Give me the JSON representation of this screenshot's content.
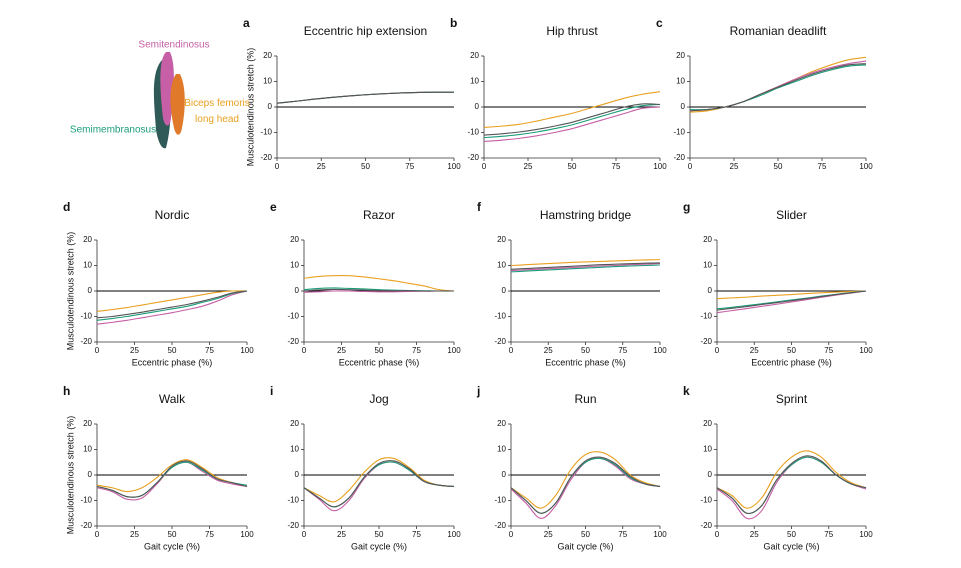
{
  "legend": [
    {
      "name": "Semitendinosus",
      "color": "#c65fa6"
    },
    {
      "name": "Semimembranosus",
      "color": "#1a9c7a"
    },
    {
      "name": "Biceps femoris long head",
      "color": "#e8a020"
    }
  ],
  "chart_data": [
    {
      "type": "line",
      "label": "a",
      "title": "Eccentric hip extension",
      "ylabel": "Musculotendinous stretch (%)",
      "x": [
        0,
        10,
        20,
        30,
        40,
        50,
        60,
        70,
        80,
        90,
        100
      ],
      "xlim": [
        0,
        100
      ],
      "ylim": [
        -20,
        20
      ],
      "xticks": [
        0,
        25,
        50,
        75,
        100
      ],
      "yticks": [
        -20,
        -10,
        0,
        10,
        20
      ],
      "series": [
        {
          "color": "#e8a020",
          "values": [
            1.5,
            2.2,
            3,
            3.7,
            4.3,
            4.8,
            5.2,
            5.5,
            5.7,
            5.8,
            5.8
          ]
        },
        {
          "color": "#c65fa6",
          "values": [
            1.5,
            2.2,
            3,
            3.7,
            4.3,
            4.8,
            5.2,
            5.5,
            5.7,
            5.8,
            5.8
          ]
        },
        {
          "color": "#1a9c7a",
          "values": [
            1.5,
            2.2,
            3,
            3.7,
            4.3,
            4.8,
            5.2,
            5.5,
            5.7,
            5.8,
            5.8
          ]
        },
        {
          "color": "#555555",
          "values": [
            1.5,
            2.2,
            3,
            3.7,
            4.3,
            4.8,
            5.2,
            5.5,
            5.7,
            5.8,
            5.8
          ]
        }
      ]
    },
    {
      "type": "line",
      "label": "b",
      "title": "Hip thrust",
      "x": [
        0,
        10,
        20,
        30,
        40,
        50,
        60,
        70,
        80,
        90,
        100
      ],
      "xlim": [
        0,
        100
      ],
      "ylim": [
        -20,
        20
      ],
      "xticks": [
        0,
        25,
        50,
        75,
        100
      ],
      "yticks": [
        -20,
        -10,
        0,
        10,
        20
      ],
      "series": [
        {
          "color": "#e8a020",
          "values": [
            -8,
            -7.5,
            -6.8,
            -5.5,
            -4,
            -2.5,
            -0.5,
            1.5,
            3.5,
            5,
            6
          ]
        },
        {
          "color": "#c65fa6",
          "values": [
            -13.5,
            -13,
            -12.3,
            -11.3,
            -10,
            -8.5,
            -6.5,
            -4.5,
            -2.5,
            -0.5,
            0
          ]
        },
        {
          "color": "#1a9c7a",
          "values": [
            -12,
            -11.5,
            -10.8,
            -9.8,
            -8.5,
            -7,
            -5,
            -3,
            -1,
            0.5,
            1
          ]
        },
        {
          "color": "#555555",
          "values": [
            -11,
            -10.5,
            -9.8,
            -8.8,
            -7.5,
            -6,
            -4,
            -2,
            0,
            1.2,
            1
          ]
        }
      ]
    },
    {
      "type": "line",
      "label": "c",
      "title": "Romanian deadlift",
      "x": [
        0,
        10,
        20,
        30,
        40,
        50,
        60,
        70,
        80,
        90,
        100
      ],
      "xlim": [
        0,
        100
      ],
      "ylim": [
        -20,
        20
      ],
      "xticks": [
        0,
        25,
        50,
        75,
        100
      ],
      "yticks": [
        -20,
        -10,
        0,
        10,
        20
      ],
      "series": [
        {
          "color": "#e8a020",
          "values": [
            -2,
            -1.5,
            0,
            2,
            5,
            8,
            11,
            14,
            16.5,
            18.5,
            19.5
          ]
        },
        {
          "color": "#c65fa6",
          "values": [
            -1.5,
            -1,
            0,
            2,
            5,
            8,
            11,
            13.5,
            15.5,
            17,
            18
          ]
        },
        {
          "color": "#1a9c7a",
          "values": [
            -1,
            -1,
            0,
            2,
            4.5,
            7.5,
            10,
            12.5,
            14.5,
            16,
            16.5
          ]
        },
        {
          "color": "#555555",
          "values": [
            -1.5,
            -1,
            0,
            2,
            5,
            7.8,
            10.5,
            13,
            15,
            16.5,
            17
          ]
        }
      ]
    },
    {
      "type": "line",
      "label": "d",
      "title": "Nordic",
      "ylabel": "Musculotendinous stretch (%)",
      "xlabel": "Eccentric phase (%)",
      "x": [
        0,
        10,
        20,
        30,
        40,
        50,
        60,
        70,
        80,
        90,
        100
      ],
      "xlim": [
        0,
        100
      ],
      "ylim": [
        -20,
        20
      ],
      "xticks": [
        0,
        25,
        50,
        75,
        100
      ],
      "yticks": [
        -20,
        -10,
        0,
        10,
        20
      ],
      "series": [
        {
          "color": "#e8a020",
          "values": [
            -8,
            -7.3,
            -6.5,
            -5.5,
            -4.5,
            -3.5,
            -2.5,
            -1.5,
            -0.5,
            0,
            0
          ]
        },
        {
          "color": "#c65fa6",
          "values": [
            -13,
            -12.3,
            -11.5,
            -10.5,
            -9.5,
            -8.5,
            -7.3,
            -6,
            -4,
            -1.5,
            0
          ]
        },
        {
          "color": "#1a9c7a",
          "values": [
            -11.5,
            -10.8,
            -10,
            -9,
            -8,
            -7,
            -6,
            -4.5,
            -3,
            -1,
            0
          ]
        },
        {
          "color": "#555555",
          "values": [
            -10.5,
            -10,
            -9.2,
            -8.3,
            -7.3,
            -6.3,
            -5.3,
            -4,
            -2.5,
            -0.8,
            0
          ]
        }
      ]
    },
    {
      "type": "line",
      "label": "e",
      "title": "Razor",
      "xlabel": "Eccentric phase (%)",
      "x": [
        0,
        10,
        20,
        30,
        40,
        50,
        60,
        70,
        80,
        90,
        100
      ],
      "xlim": [
        0,
        100
      ],
      "ylim": [
        -20,
        20
      ],
      "xticks": [
        0,
        25,
        50,
        75,
        100
      ],
      "yticks": [
        -20,
        -10,
        0,
        10,
        20
      ],
      "series": [
        {
          "color": "#e8a020",
          "values": [
            5,
            5.7,
            6,
            6,
            5.5,
            4.8,
            4,
            3,
            2,
            0.5,
            0
          ]
        },
        {
          "color": "#c65fa6",
          "values": [
            -0.5,
            -0.3,
            0,
            0,
            -0.2,
            -0.3,
            -0.3,
            -0.2,
            -0.1,
            0,
            0
          ]
        },
        {
          "color": "#1a9c7a",
          "values": [
            0.5,
            1,
            1.2,
            1,
            0.8,
            0.5,
            0.3,
            0.2,
            0.1,
            0,
            0
          ]
        },
        {
          "color": "#555555",
          "values": [
            0,
            0.4,
            0.6,
            0.5,
            0.3,
            0.2,
            0.1,
            0.1,
            0,
            0,
            0
          ]
        }
      ]
    },
    {
      "type": "line",
      "label": "f",
      "title": "Hamstring bridge",
      "xlabel": "Eccentric phase (%)",
      "x": [
        0,
        10,
        20,
        30,
        40,
        50,
        60,
        70,
        80,
        90,
        100
      ],
      "xlim": [
        0,
        100
      ],
      "ylim": [
        -20,
        20
      ],
      "xticks": [
        0,
        25,
        50,
        75,
        100
      ],
      "yticks": [
        -20,
        -10,
        0,
        10,
        20
      ],
      "series": [
        {
          "color": "#e8a020",
          "values": [
            10,
            10.3,
            10.6,
            10.9,
            11.2,
            11.4,
            11.6,
            11.8,
            12,
            12.2,
            12.3
          ]
        },
        {
          "color": "#c65fa6",
          "values": [
            8,
            8.3,
            8.6,
            8.9,
            9.2,
            9.5,
            9.8,
            10,
            10.3,
            10.5,
            10.8
          ]
        },
        {
          "color": "#1a9c7a",
          "values": [
            7.5,
            7.8,
            8.1,
            8.4,
            8.7,
            9,
            9.3,
            9.6,
            9.8,
            10,
            10.2
          ]
        },
        {
          "color": "#555555",
          "values": [
            8.5,
            8.8,
            9.1,
            9.4,
            9.7,
            10,
            10.3,
            10.5,
            10.7,
            10.9,
            11
          ]
        }
      ]
    },
    {
      "type": "line",
      "label": "g",
      "title": "Slider",
      "xlabel": "Eccentric phase (%)",
      "x": [
        0,
        10,
        20,
        30,
        40,
        50,
        60,
        70,
        80,
        90,
        100
      ],
      "xlim": [
        0,
        100
      ],
      "ylim": [
        -20,
        20
      ],
      "xticks": [
        0,
        25,
        50,
        75,
        100
      ],
      "yticks": [
        -20,
        -10,
        0,
        10,
        20
      ],
      "series": [
        {
          "color": "#e8a020",
          "values": [
            -3,
            -2.7,
            -2.4,
            -2,
            -1.7,
            -1.4,
            -1,
            -0.7,
            -0.4,
            -0.2,
            0
          ]
        },
        {
          "color": "#c65fa6",
          "values": [
            -8.5,
            -7.7,
            -6.9,
            -6,
            -5.2,
            -4.3,
            -3.4,
            -2.5,
            -1.6,
            -0.8,
            0
          ]
        },
        {
          "color": "#1a9c7a",
          "values": [
            -7,
            -6.4,
            -5.7,
            -5,
            -4.3,
            -3.5,
            -2.8,
            -2,
            -1.3,
            -0.6,
            0
          ]
        },
        {
          "color": "#555555",
          "values": [
            -7.5,
            -6.8,
            -6.1,
            -5.3,
            -4.6,
            -3.8,
            -3,
            -2.2,
            -1.4,
            -0.7,
            0
          ]
        }
      ]
    },
    {
      "type": "line",
      "label": "h",
      "title": "Walk",
      "ylabel": "Musculotendinous stretch (%)",
      "xlabel": "Gait cycle (%)",
      "x": [
        0,
        10,
        20,
        30,
        40,
        50,
        60,
        70,
        80,
        90,
        100
      ],
      "xlim": [
        0,
        100
      ],
      "ylim": [
        -20,
        20
      ],
      "xticks": [
        0,
        25,
        50,
        75,
        100
      ],
      "yticks": [
        -20,
        -10,
        0,
        10,
        20
      ],
      "series": [
        {
          "color": "#e8a020",
          "values": [
            -4,
            -5,
            -6.5,
            -5,
            -1,
            4,
            6,
            3,
            -1,
            -3,
            -4.5
          ]
        },
        {
          "color": "#c65fa6",
          "values": [
            -5,
            -6.5,
            -9.5,
            -9,
            -3.5,
            3,
            5,
            1.5,
            -2,
            -3.5,
            -4.5
          ]
        },
        {
          "color": "#1a9c7a",
          "values": [
            -4.5,
            -6,
            -8.5,
            -8,
            -3,
            3,
            5,
            2,
            -1.5,
            -3,
            -4
          ]
        },
        {
          "color": "#555555",
          "values": [
            -4.5,
            -6,
            -8.5,
            -8,
            -3,
            3.5,
            5.5,
            2.5,
            -1.5,
            -3,
            -4.5
          ]
        }
      ]
    },
    {
      "type": "line",
      "label": "i",
      "title": "Jog",
      "xlabel": "Gait cycle (%)",
      "x": [
        0,
        10,
        20,
        30,
        40,
        50,
        60,
        70,
        80,
        90,
        100
      ],
      "xlim": [
        0,
        100
      ],
      "ylim": [
        -20,
        20
      ],
      "xticks": [
        0,
        25,
        50,
        75,
        100
      ],
      "yticks": [
        -20,
        -10,
        0,
        10,
        20
      ],
      "series": [
        {
          "color": "#e8a020",
          "values": [
            -5,
            -8,
            -10.5,
            -6,
            1,
            6,
            6.5,
            3,
            -2,
            -4,
            -4.5
          ]
        },
        {
          "color": "#c65fa6",
          "values": [
            -5,
            -9.5,
            -14,
            -10,
            -1.5,
            4,
            5,
            2,
            -2.5,
            -4,
            -4.5
          ]
        },
        {
          "color": "#1a9c7a",
          "values": [
            -5,
            -9,
            -12.5,
            -9,
            -1,
            4,
            5,
            2,
            -2.5,
            -4,
            -4.5
          ]
        },
        {
          "color": "#555555",
          "values": [
            -5,
            -9,
            -12.5,
            -9,
            -1,
            4.5,
            5.5,
            2.5,
            -2.5,
            -4,
            -4.5
          ]
        }
      ]
    },
    {
      "type": "line",
      "label": "j",
      "title": "Run",
      "xlabel": "Gait cycle (%)",
      "x": [
        0,
        10,
        20,
        30,
        40,
        50,
        60,
        70,
        80,
        90,
        100
      ],
      "xlim": [
        0,
        100
      ],
      "ylim": [
        -20,
        20
      ],
      "xticks": [
        0,
        25,
        50,
        75,
        100
      ],
      "yticks": [
        -20,
        -10,
        0,
        10,
        20
      ],
      "series": [
        {
          "color": "#e8a020",
          "values": [
            -5,
            -9,
            -13,
            -8,
            2,
            8,
            9,
            6,
            0,
            -3,
            -4.5
          ]
        },
        {
          "color": "#c65fa6",
          "values": [
            -5.5,
            -11,
            -17,
            -12,
            -2,
            5,
            6.5,
            3.5,
            -1.5,
            -3.5,
            -4.5
          ]
        },
        {
          "color": "#1a9c7a",
          "values": [
            -5,
            -10,
            -15,
            -11,
            -1,
            5,
            6.5,
            4,
            -1,
            -3.5,
            -4.5
          ]
        },
        {
          "color": "#555555",
          "values": [
            -5,
            -10,
            -15,
            -11,
            -1,
            5.5,
            7,
            4.5,
            -0.5,
            -3.5,
            -4.5
          ]
        }
      ]
    },
    {
      "type": "line",
      "label": "k",
      "title": "Sprint",
      "xlabel": "Gait cycle (%)",
      "x": [
        0,
        10,
        20,
        30,
        40,
        50,
        60,
        70,
        80,
        90,
        100
      ],
      "xlim": [
        0,
        100
      ],
      "ylim": [
        -20,
        20
      ],
      "xticks": [
        0,
        25,
        50,
        75,
        100
      ],
      "yticks": [
        -20,
        -10,
        0,
        10,
        20
      ],
      "series": [
        {
          "color": "#e8a020",
          "values": [
            -5,
            -8,
            -13,
            -9,
            1,
            7,
            9.5,
            7,
            1,
            -3,
            -5
          ]
        },
        {
          "color": "#c65fa6",
          "values": [
            -5.5,
            -10,
            -17,
            -14,
            -3,
            4,
            7,
            5,
            0,
            -3.5,
            -5.5
          ]
        },
        {
          "color": "#1a9c7a",
          "values": [
            -5,
            -9,
            -15,
            -12,
            -2,
            4,
            7,
            5,
            0,
            -3.5,
            -5
          ]
        },
        {
          "color": "#555555",
          "values": [
            -5,
            -9,
            -15,
            -12,
            -2,
            4.5,
            7.5,
            5.5,
            0,
            -3.5,
            -5
          ]
        }
      ]
    }
  ]
}
